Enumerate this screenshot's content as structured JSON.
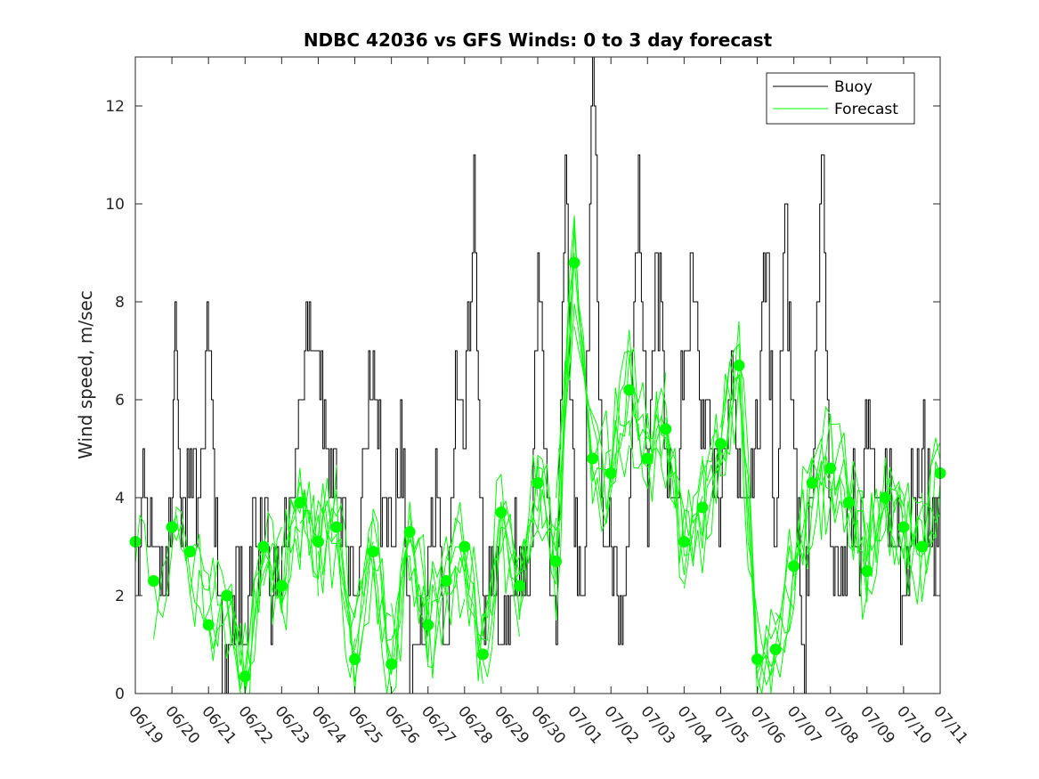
{
  "chart_data": {
    "type": "line",
    "title": "NDBC 42036 vs GFS Winds: 0 to 3 day forecast",
    "xlabel": "",
    "ylabel": "Wind speed, m/sec",
    "xlim": [
      "06/19",
      "07/11"
    ],
    "ylim": [
      0,
      13
    ],
    "x_ticks": [
      "06/19",
      "06/20",
      "06/21",
      "06/22",
      "06/23",
      "06/24",
      "06/25",
      "06/26",
      "06/27",
      "06/28",
      "06/29",
      "06/30",
      "07/01",
      "07/02",
      "07/03",
      "07/04",
      "07/05",
      "07/06",
      "07/07",
      "07/08",
      "07/09",
      "07/10",
      "07/11"
    ],
    "y_ticks": [
      0,
      2,
      4,
      6,
      8,
      10,
      12
    ],
    "grid": false,
    "legend_position": "top-right",
    "colors": {
      "buoy": "#000000",
      "forecast": "#00ff00"
    },
    "series": [
      {
        "name": "Buoy",
        "style": "step-line",
        "x_unit": "days since 06/19 00Z",
        "x": [
          0,
          0.25,
          0.5,
          0.75,
          1,
          1.1,
          1.25,
          1.5,
          1.75,
          2,
          2.25,
          2.5,
          2.75,
          3,
          3.25,
          3.5,
          3.75,
          4,
          4.25,
          4.5,
          4.75,
          5,
          5.25,
          5.5,
          5.75,
          6,
          6.25,
          6.5,
          6.75,
          7,
          7.25,
          7.5,
          7.75,
          8,
          8.25,
          8.5,
          8.75,
          9,
          9.25,
          9.5,
          9.75,
          10,
          10.25,
          10.5,
          10.75,
          11,
          11.25,
          11.5,
          11.75,
          12,
          12.25,
          12.5,
          12.75,
          13,
          13.25,
          13.5,
          13.75,
          14,
          14.25,
          14.5,
          14.75,
          15,
          15.25,
          15.5,
          15.75,
          16,
          16.25,
          16.5,
          16.75,
          17,
          17.25,
          17.5,
          17.75,
          18,
          18.25,
          18.5,
          18.75,
          19,
          19.25,
          19.5,
          19.75,
          20,
          20.25,
          20.5,
          20.75,
          21,
          21.25,
          21.5,
          21.75,
          22
        ],
        "y": [
          3,
          4,
          3,
          2,
          4,
          8,
          3,
          5,
          4,
          7,
          2,
          0,
          3,
          1,
          4,
          3,
          2,
          3,
          4,
          6,
          8,
          7,
          5,
          4,
          3,
          2,
          5,
          7,
          4,
          3,
          6,
          0,
          1,
          3,
          4,
          1,
          7,
          5,
          11,
          2,
          3,
          1,
          2,
          3,
          2,
          9,
          4,
          1,
          11,
          3,
          2,
          13,
          4,
          3,
          2,
          4,
          11,
          3,
          9,
          5,
          4,
          7,
          8,
          6,
          5,
          4,
          6,
          5,
          4,
          5,
          9,
          3,
          10,
          5,
          1,
          4,
          11,
          3,
          2,
          4,
          3,
          5,
          4,
          5,
          3,
          2,
          4,
          5,
          3,
          4
        ]
      },
      {
        "name": "Forecast",
        "style": "multi-line",
        "x_unit": "days since 06/19 00Z",
        "x": [
          0,
          0.5,
          1,
          1.5,
          2,
          2.5,
          3,
          3.5,
          4,
          4.5,
          5,
          5.5,
          6,
          6.5,
          7,
          7.5,
          8,
          8.5,
          9,
          9.5,
          10,
          10.5,
          11,
          11.5,
          12,
          12.5,
          13,
          13.5,
          14,
          14.5,
          15,
          15.5,
          16,
          16.5,
          17,
          17.5,
          18,
          18.5,
          19,
          19.5,
          20,
          20.5,
          21,
          21.5,
          22
        ],
        "y": [
          3.1,
          2.3,
          3.4,
          2.9,
          1.4,
          2.0,
          0.35,
          3.0,
          2.2,
          3.9,
          3.1,
          3.4,
          0.7,
          2.9,
          0.6,
          3.3,
          1.4,
          2.3,
          3.0,
          0.8,
          3.7,
          2.2,
          4.3,
          2.7,
          8.8,
          4.8,
          4.5,
          6.2,
          4.8,
          5.4,
          3.1,
          3.8,
          5.1,
          6.7,
          0.7,
          0.9,
          2.6,
          4.3,
          4.6,
          3.9,
          2.5,
          4.0,
          3.4,
          3.0,
          4.5
        ]
      }
    ]
  }
}
